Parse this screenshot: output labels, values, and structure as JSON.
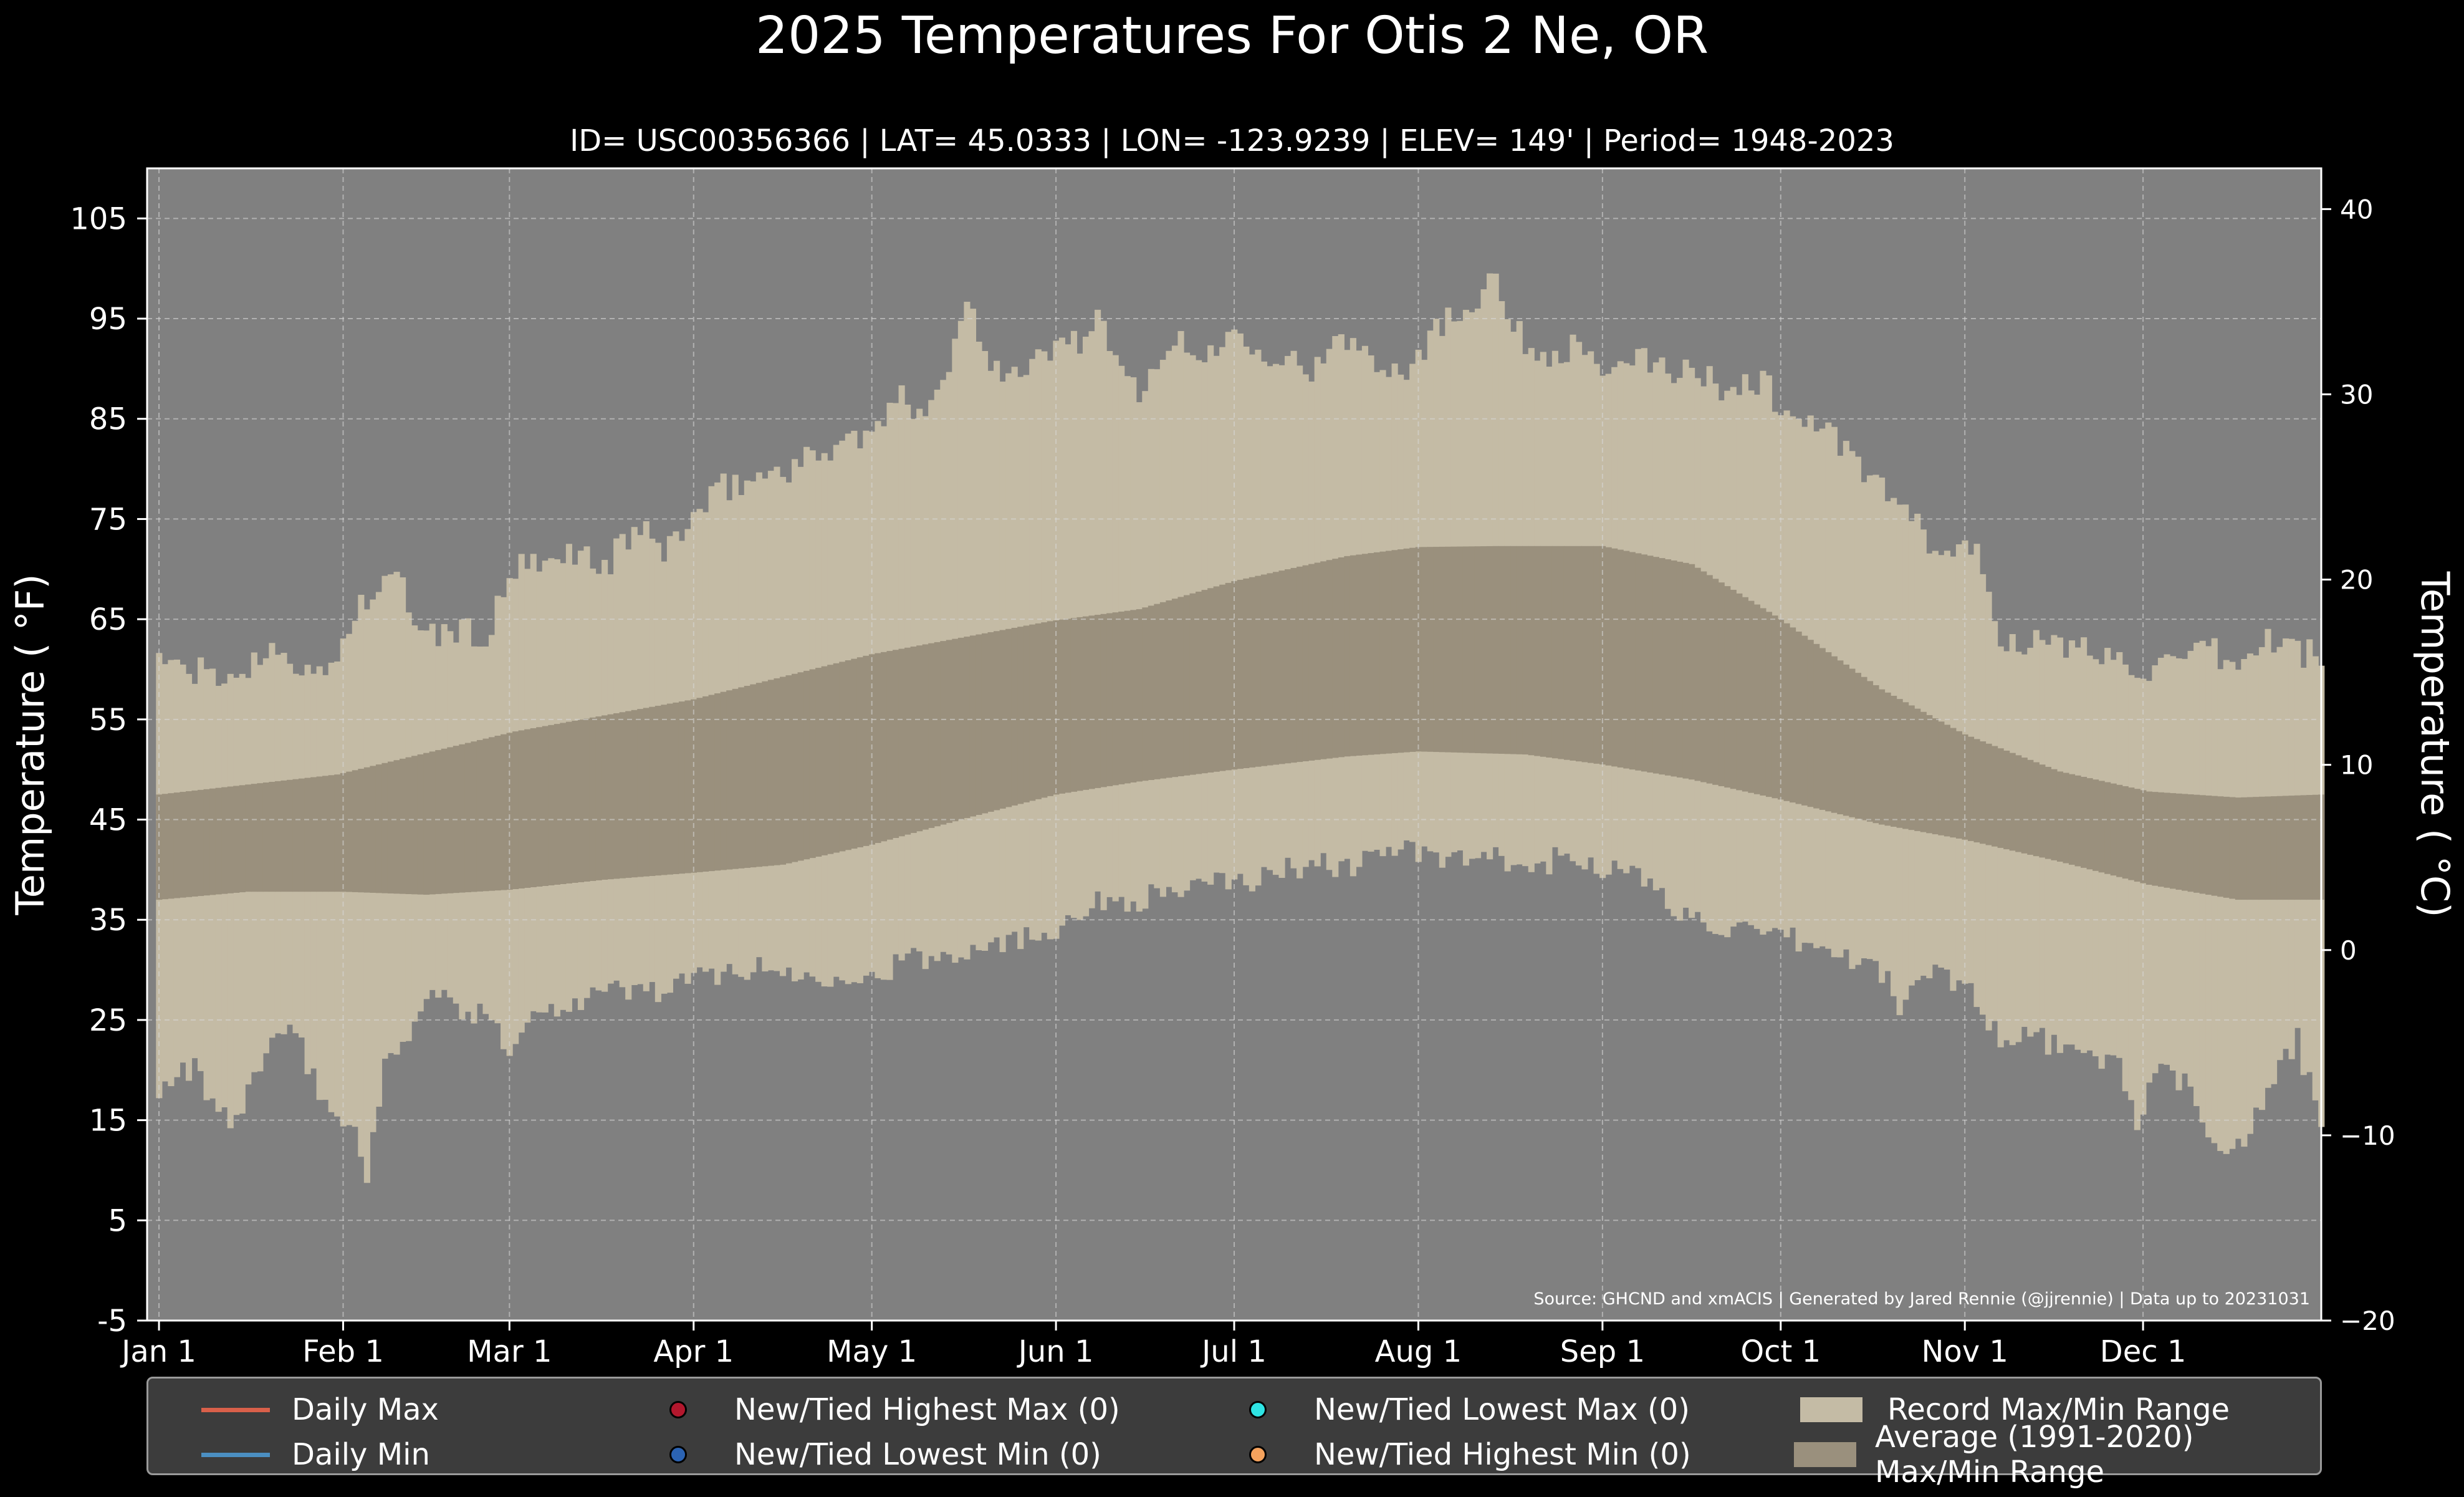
{
  "chart_data": {
    "type": "bar",
    "title": "2025 Temperatures For Otis 2 Ne, OR",
    "subtitle": "ID= USC00356366 | LAT= 45.0333 | LON= -123.9239 | ELEV= 149' | Period= 1948-2023",
    "ylabel": "Temperature ( °F)",
    "ylabel_right": "Temperature ( °C)",
    "ylim": [
      -5,
      110
    ],
    "ylim_right": [
      -20,
      42.2
    ],
    "yticks": [
      -5,
      5,
      15,
      25,
      35,
      45,
      55,
      65,
      75,
      85,
      95,
      105
    ],
    "yticks_right": [
      -20,
      -10,
      0,
      10,
      20,
      30,
      40
    ],
    "xlim_day": [
      -2,
      364
    ],
    "xticks": [
      {
        "label": "Jan 1",
        "day": 0
      },
      {
        "label": "Feb 1",
        "day": 31
      },
      {
        "label": "Mar 1",
        "day": 59
      },
      {
        "label": "Apr 1",
        "day": 90
      },
      {
        "label": "May 1",
        "day": 120
      },
      {
        "label": "Jun 1",
        "day": 151
      },
      {
        "label": "Jul 1",
        "day": 181
      },
      {
        "label": "Aug 1",
        "day": 212
      },
      {
        "label": "Sep 1",
        "day": 243
      },
      {
        "label": "Oct 1",
        "day": 273
      },
      {
        "label": "Nov 1",
        "day": 304
      },
      {
        "label": "Dec 1",
        "day": 334
      }
    ],
    "grid": true,
    "source": "Source: GHCND and xmACIS | Generated by Jared Rennie (@jjrennie) | Data up to 20231031",
    "record_range": {
      "name": "Record Max/Min Range",
      "color": "#c4bba5",
      "record_max_anchors": [
        [
          0,
          62
        ],
        [
          2,
          60
        ],
        [
          5,
          60
        ],
        [
          10,
          59
        ],
        [
          15,
          60
        ],
        [
          20,
          63
        ],
        [
          25,
          59
        ],
        [
          30,
          61
        ],
        [
          33,
          66
        ],
        [
          40,
          69
        ],
        [
          45,
          63
        ],
        [
          50,
          64
        ],
        [
          55,
          63
        ],
        [
          60,
          70
        ],
        [
          65,
          70
        ],
        [
          70,
          72
        ],
        [
          75,
          70
        ],
        [
          80,
          74
        ],
        [
          85,
          72
        ],
        [
          90,
          75
        ],
        [
          95,
          78
        ],
        [
          100,
          79
        ],
        [
          105,
          80
        ],
        [
          110,
          81
        ],
        [
          115,
          83
        ],
        [
          120,
          83
        ],
        [
          124,
          87
        ],
        [
          128,
          86
        ],
        [
          133,
          90
        ],
        [
          136,
          97
        ],
        [
          140,
          91
        ],
        [
          145,
          89
        ],
        [
          150,
          92
        ],
        [
          155,
          93
        ],
        [
          158,
          95
        ],
        [
          162,
          89
        ],
        [
          166,
          88
        ],
        [
          170,
          93
        ],
        [
          175,
          91
        ],
        [
          180,
          93
        ],
        [
          182,
          94
        ],
        [
          186,
          92
        ],
        [
          190,
          91
        ],
        [
          195,
          90
        ],
        [
          200,
          93
        ],
        [
          205,
          91
        ],
        [
          210,
          90
        ],
        [
          215,
          94
        ],
        [
          220,
          96
        ],
        [
          225,
          100
        ],
        [
          228,
          94
        ],
        [
          232,
          91
        ],
        [
          235,
          92
        ],
        [
          240,
          92
        ],
        [
          245,
          89
        ],
        [
          250,
          91
        ],
        [
          255,
          90
        ],
        [
          260,
          89
        ],
        [
          265,
          88
        ],
        [
          270,
          89
        ],
        [
          274,
          85
        ],
        [
          278,
          85
        ],
        [
          282,
          83
        ],
        [
          288,
          79
        ],
        [
          292,
          77
        ],
        [
          296,
          74
        ],
        [
          300,
          71
        ],
        [
          305,
          73
        ],
        [
          310,
          63
        ],
        [
          315,
          63
        ],
        [
          320,
          62
        ],
        [
          325,
          62
        ],
        [
          330,
          61
        ],
        [
          335,
          60
        ],
        [
          340,
          60
        ],
        [
          345,
          62
        ],
        [
          350,
          60
        ],
        [
          355,
          63
        ],
        [
          360,
          62
        ],
        [
          364,
          61
        ]
      ],
      "record_min_anchors": [
        [
          0,
          17
        ],
        [
          3,
          20
        ],
        [
          6,
          20
        ],
        [
          9,
          17
        ],
        [
          12,
          14
        ],
        [
          15,
          18
        ],
        [
          18,
          22
        ],
        [
          21,
          24
        ],
        [
          24,
          22
        ],
        [
          27,
          18
        ],
        [
          30,
          15
        ],
        [
          33,
          14
        ],
        [
          35,
          10
        ],
        [
          38,
          20
        ],
        [
          41,
          23
        ],
        [
          44,
          26
        ],
        [
          47,
          28
        ],
        [
          50,
          26
        ],
        [
          53,
          25
        ],
        [
          56,
          26
        ],
        [
          59,
          22
        ],
        [
          62,
          25
        ],
        [
          65,
          26
        ],
        [
          70,
          27
        ],
        [
          75,
          28
        ],
        [
          80,
          28
        ],
        [
          85,
          28
        ],
        [
          90,
          29
        ],
        [
          95,
          30
        ],
        [
          100,
          30
        ],
        [
          105,
          30
        ],
        [
          110,
          29
        ],
        [
          115,
          30
        ],
        [
          120,
          29
        ],
        [
          125,
          31
        ],
        [
          130,
          31
        ],
        [
          135,
          32
        ],
        [
          140,
          33
        ],
        [
          145,
          33
        ],
        [
          150,
          34
        ],
        [
          155,
          36
        ],
        [
          160,
          37
        ],
        [
          165,
          37
        ],
        [
          170,
          38
        ],
        [
          175,
          38
        ],
        [
          180,
          39
        ],
        [
          185,
          39
        ],
        [
          190,
          40
        ],
        [
          195,
          41
        ],
        [
          200,
          40
        ],
        [
          205,
          42
        ],
        [
          210,
          42
        ],
        [
          215,
          41
        ],
        [
          220,
          41
        ],
        [
          225,
          41
        ],
        [
          230,
          40
        ],
        [
          235,
          41
        ],
        [
          240,
          41
        ],
        [
          245,
          40
        ],
        [
          250,
          39
        ],
        [
          255,
          36
        ],
        [
          260,
          35
        ],
        [
          265,
          34
        ],
        [
          270,
          33
        ],
        [
          275,
          33
        ],
        [
          280,
          32
        ],
        [
          285,
          31
        ],
        [
          290,
          30
        ],
        [
          293,
          26
        ],
        [
          296,
          29
        ],
        [
          300,
          30
        ],
        [
          305,
          28
        ],
        [
          308,
          25
        ],
        [
          312,
          22
        ],
        [
          315,
          24
        ],
        [
          320,
          22
        ],
        [
          325,
          21
        ],
        [
          330,
          21
        ],
        [
          333,
          15
        ],
        [
          337,
          20
        ],
        [
          342,
          18
        ],
        [
          345,
          14
        ],
        [
          349,
          12
        ],
        [
          353,
          15
        ],
        [
          357,
          20
        ],
        [
          360,
          23
        ],
        [
          364,
          14
        ]
      ]
    },
    "average_range": {
      "name": "Average (1991-2020) Max/Min Range",
      "color": "#9a907d",
      "avg_max_anchors": [
        [
          0,
          47.5
        ],
        [
          30,
          49.5
        ],
        [
          60,
          53.8
        ],
        [
          90,
          57
        ],
        [
          120,
          61.5
        ],
        [
          150,
          64.8
        ],
        [
          165,
          66
        ],
        [
          181,
          68.8
        ],
        [
          200,
          71.3
        ],
        [
          212,
          72.2
        ],
        [
          225,
          72.3
        ],
        [
          243,
          72.3
        ],
        [
          258,
          70.5
        ],
        [
          273,
          65
        ],
        [
          290,
          58
        ],
        [
          304,
          53.5
        ],
        [
          320,
          49.8
        ],
        [
          335,
          47.8
        ],
        [
          350,
          47.2
        ],
        [
          364,
          47.5
        ]
      ],
      "avg_min_anchors": [
        [
          0,
          37
        ],
        [
          15,
          37.8
        ],
        [
          31,
          37.8
        ],
        [
          45,
          37.5
        ],
        [
          59,
          38
        ],
        [
          75,
          39
        ],
        [
          90,
          39.7
        ],
        [
          105,
          40.5
        ],
        [
          120,
          42.5
        ],
        [
          135,
          45
        ],
        [
          151,
          47.5
        ],
        [
          165,
          48.8
        ],
        [
          181,
          50
        ],
        [
          200,
          51.3
        ],
        [
          212,
          51.8
        ],
        [
          230,
          51.5
        ],
        [
          243,
          50.5
        ],
        [
          258,
          49
        ],
        [
          273,
          47
        ],
        [
          290,
          44.5
        ],
        [
          304,
          43
        ],
        [
          320,
          40.8
        ],
        [
          335,
          38.5
        ],
        [
          350,
          37
        ],
        [
          364,
          37
        ]
      ]
    },
    "legend": {
      "placement": "below",
      "items": [
        {
          "label": "Daily Max",
          "kind": "line",
          "color": "#d9604a"
        },
        {
          "label": "Daily Min",
          "kind": "line",
          "color": "#4b8fc2"
        },
        {
          "label": "New/Tied Highest Max (0)",
          "kind": "dot",
          "color": "#b3172d"
        },
        {
          "label": "New/Tied Lowest Min (0)",
          "kind": "dot",
          "color": "#2b63b3"
        },
        {
          "label": "New/Tied Lowest Max (0)",
          "kind": "dot",
          "color": "#2ee4e4"
        },
        {
          "label": "New/Tied Highest Min (0)",
          "kind": "dot",
          "color": "#f5a25d"
        },
        {
          "label": "Record Max/Min Range",
          "kind": "patch",
          "color": "#c4bba5"
        },
        {
          "label": "Average (1991-2020) Max/Min Range",
          "kind": "patch",
          "color": "#9a907d"
        }
      ]
    }
  }
}
